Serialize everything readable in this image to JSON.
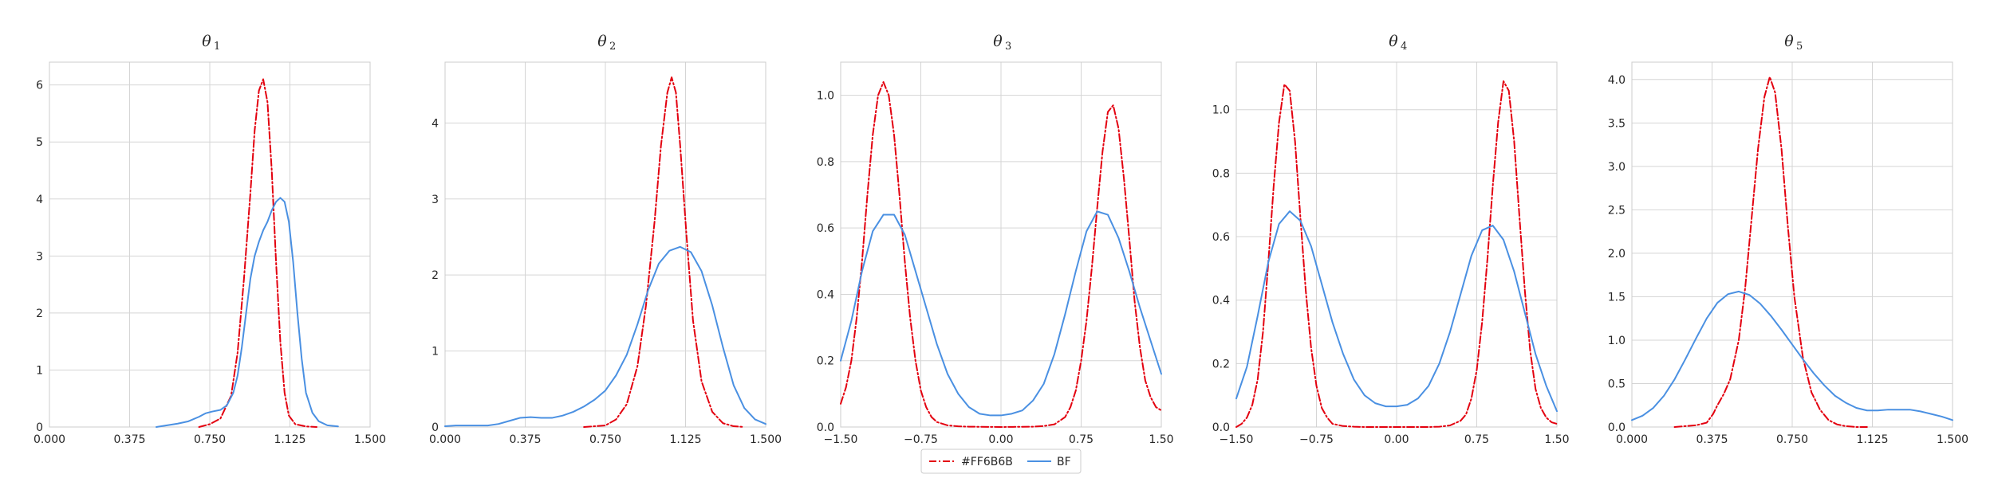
{
  "chart_data": [
    {
      "type": "line",
      "title": "θ",
      "title_sub": "1",
      "xlim": [
        0,
        1.5
      ],
      "ylim": [
        0,
        6.4
      ],
      "xticks": [
        0,
        0.375,
        0.75,
        1.125,
        1.5
      ],
      "xtick_labels": [
        "0.000",
        "0.375",
        "0.750",
        "1.125",
        "1.500"
      ],
      "yticks": [
        0,
        1,
        2,
        3,
        4,
        5,
        6
      ],
      "ytick_labels": [
        "0",
        "1",
        "2",
        "3",
        "4",
        "5",
        "6"
      ],
      "grid": true,
      "series": [
        {
          "name": "#FF6B6B",
          "color": "#e3000f",
          "style": "dashdot",
          "x": [
            0.7,
            0.75,
            0.8,
            0.85,
            0.88,
            0.91,
            0.94,
            0.96,
            0.98,
            1.0,
            1.02,
            1.04,
            1.06,
            1.08,
            1.1,
            1.12,
            1.15,
            1.2,
            1.25
          ],
          "y": [
            0.0,
            0.05,
            0.15,
            0.55,
            1.3,
            2.6,
            4.1,
            5.2,
            5.9,
            6.1,
            5.7,
            4.5,
            2.9,
            1.5,
            0.6,
            0.2,
            0.05,
            0.01,
            0.0
          ]
        },
        {
          "name": "BF",
          "color": "#4a90e2",
          "style": "solid",
          "x": [
            0.5,
            0.55,
            0.6,
            0.65,
            0.7,
            0.73,
            0.76,
            0.8,
            0.83,
            0.86,
            0.88,
            0.9,
            0.92,
            0.94,
            0.96,
            0.98,
            1.0,
            1.02,
            1.04,
            1.06,
            1.08,
            1.1,
            1.12,
            1.14,
            1.16,
            1.18,
            1.2,
            1.23,
            1.26,
            1.3,
            1.35
          ],
          "y": [
            0.0,
            0.03,
            0.06,
            0.1,
            0.18,
            0.24,
            0.27,
            0.3,
            0.38,
            0.6,
            0.9,
            1.4,
            2.0,
            2.6,
            3.0,
            3.25,
            3.45,
            3.6,
            3.8,
            3.95,
            4.02,
            3.95,
            3.6,
            2.9,
            2.0,
            1.2,
            0.6,
            0.25,
            0.1,
            0.03,
            0.01
          ]
        }
      ]
    },
    {
      "type": "line",
      "title": "θ",
      "title_sub": "2",
      "xlim": [
        0,
        1.5
      ],
      "ylim": [
        0,
        4.8
      ],
      "xticks": [
        0,
        0.375,
        0.75,
        1.125,
        1.5
      ],
      "xtick_labels": [
        "0.000",
        "0.375",
        "0.750",
        "1.125",
        "1.500"
      ],
      "yticks": [
        0,
        1,
        2,
        3,
        4
      ],
      "ytick_labels": [
        "0",
        "1",
        "2",
        "3",
        "4"
      ],
      "grid": true,
      "series": [
        {
          "name": "#FF6B6B",
          "color": "#e3000f",
          "style": "dashdot",
          "x": [
            0.65,
            0.75,
            0.8,
            0.85,
            0.9,
            0.94,
            0.98,
            1.01,
            1.04,
            1.06,
            1.08,
            1.1,
            1.13,
            1.16,
            1.2,
            1.25,
            1.3,
            1.35,
            1.4
          ],
          "y": [
            0.0,
            0.02,
            0.1,
            0.3,
            0.8,
            1.6,
            2.7,
            3.7,
            4.4,
            4.6,
            4.4,
            3.7,
            2.5,
            1.4,
            0.6,
            0.2,
            0.05,
            0.01,
            0.0
          ]
        },
        {
          "name": "BF",
          "color": "#4a90e2",
          "style": "solid",
          "x": [
            0.0,
            0.05,
            0.1,
            0.15,
            0.2,
            0.25,
            0.3,
            0.35,
            0.4,
            0.45,
            0.5,
            0.55,
            0.6,
            0.65,
            0.7,
            0.75,
            0.8,
            0.85,
            0.9,
            0.95,
            1.0,
            1.05,
            1.1,
            1.15,
            1.2,
            1.25,
            1.3,
            1.35,
            1.4,
            1.45,
            1.5
          ],
          "y": [
            0.01,
            0.02,
            0.02,
            0.02,
            0.02,
            0.04,
            0.08,
            0.12,
            0.13,
            0.12,
            0.12,
            0.15,
            0.2,
            0.27,
            0.36,
            0.48,
            0.68,
            0.95,
            1.35,
            1.8,
            2.15,
            2.32,
            2.37,
            2.3,
            2.05,
            1.6,
            1.05,
            0.55,
            0.25,
            0.1,
            0.04
          ]
        }
      ]
    },
    {
      "type": "line",
      "title": "θ",
      "title_sub": "3",
      "xlim": [
        -1.5,
        1.5
      ],
      "ylim": [
        0,
        1.1
      ],
      "xticks": [
        -1.5,
        -0.75,
        0,
        0.75,
        1.5
      ],
      "xtick_labels": [
        "−1.50",
        "−0.75",
        "0.00",
        "0.75",
        "1.50"
      ],
      "yticks": [
        0,
        0.2,
        0.4,
        0.6,
        0.8,
        1.0
      ],
      "ytick_labels": [
        "0.0",
        "0.2",
        "0.4",
        "0.6",
        "0.8",
        "1.0"
      ],
      "grid": true,
      "series": [
        {
          "name": "#FF6B6B",
          "color": "#e3000f",
          "style": "dashdot",
          "x": [
            -1.5,
            -1.45,
            -1.4,
            -1.35,
            -1.3,
            -1.25,
            -1.2,
            -1.15,
            -1.1,
            -1.05,
            -1.0,
            -0.95,
            -0.9,
            -0.85,
            -0.8,
            -0.75,
            -0.7,
            -0.65,
            -0.6,
            -0.5,
            -0.4,
            -0.3,
            0.0,
            0.3,
            0.4,
            0.5,
            0.6,
            0.65,
            0.7,
            0.75,
            0.8,
            0.85,
            0.9,
            0.95,
            1.0,
            1.05,
            1.1,
            1.15,
            1.2,
            1.25,
            1.3,
            1.35,
            1.4,
            1.45,
            1.5
          ],
          "y": [
            0.07,
            0.12,
            0.2,
            0.33,
            0.5,
            0.7,
            0.88,
            1.0,
            1.04,
            1.0,
            0.88,
            0.7,
            0.5,
            0.33,
            0.2,
            0.11,
            0.06,
            0.03,
            0.015,
            0.005,
            0.002,
            0.001,
            0.0,
            0.001,
            0.003,
            0.008,
            0.03,
            0.06,
            0.11,
            0.2,
            0.32,
            0.48,
            0.66,
            0.83,
            0.95,
            0.97,
            0.9,
            0.75,
            0.57,
            0.38,
            0.24,
            0.14,
            0.09,
            0.06,
            0.05
          ]
        },
        {
          "name": "BF",
          "color": "#4a90e2",
          "style": "solid",
          "x": [
            -1.5,
            -1.4,
            -1.3,
            -1.2,
            -1.1,
            -1.0,
            -0.9,
            -0.8,
            -0.7,
            -0.6,
            -0.5,
            -0.4,
            -0.3,
            -0.2,
            -0.1,
            0.0,
            0.1,
            0.2,
            0.3,
            0.4,
            0.5,
            0.6,
            0.7,
            0.8,
            0.9,
            1.0,
            1.1,
            1.2,
            1.3,
            1.4,
            1.5
          ],
          "y": [
            0.2,
            0.32,
            0.47,
            0.59,
            0.64,
            0.64,
            0.58,
            0.47,
            0.36,
            0.25,
            0.16,
            0.1,
            0.06,
            0.04,
            0.035,
            0.035,
            0.04,
            0.05,
            0.08,
            0.13,
            0.22,
            0.34,
            0.47,
            0.59,
            0.65,
            0.64,
            0.57,
            0.47,
            0.36,
            0.26,
            0.16
          ]
        }
      ]
    },
    {
      "type": "line",
      "title": "θ",
      "title_sub": "4",
      "xlim": [
        -1.5,
        1.5
      ],
      "ylim": [
        0,
        1.15
      ],
      "xticks": [
        -1.5,
        -0.75,
        0,
        0.75,
        1.5
      ],
      "xtick_labels": [
        "−1.50",
        "−0.75",
        "0.00",
        "0.75",
        "1.50"
      ],
      "yticks": [
        0,
        0.2,
        0.4,
        0.6,
        0.8,
        1.0
      ],
      "ytick_labels": [
        "0.0",
        "0.2",
        "0.4",
        "0.6",
        "0.8",
        "1.0"
      ],
      "grid": true,
      "series": [
        {
          "name": "#FF6B6B",
          "color": "#e3000f",
          "style": "dashdot",
          "x": [
            -1.5,
            -1.45,
            -1.4,
            -1.35,
            -1.3,
            -1.25,
            -1.2,
            -1.15,
            -1.1,
            -1.05,
            -1.0,
            -0.95,
            -0.9,
            -0.85,
            -0.8,
            -0.75,
            -0.7,
            -0.65,
            -0.6,
            -0.5,
            -0.4,
            -0.3,
            0.0,
            0.3,
            0.4,
            0.5,
            0.6,
            0.65,
            0.7,
            0.75,
            0.8,
            0.85,
            0.9,
            0.95,
            1.0,
            1.05,
            1.1,
            1.15,
            1.2,
            1.25,
            1.3,
            1.35,
            1.4,
            1.45,
            1.5
          ],
          "y": [
            0.0,
            0.01,
            0.03,
            0.07,
            0.15,
            0.3,
            0.52,
            0.76,
            0.96,
            1.08,
            1.06,
            0.9,
            0.66,
            0.43,
            0.25,
            0.13,
            0.06,
            0.03,
            0.01,
            0.003,
            0.001,
            0.0,
            0.0,
            0.0,
            0.001,
            0.005,
            0.02,
            0.04,
            0.09,
            0.18,
            0.33,
            0.53,
            0.76,
            0.96,
            1.09,
            1.06,
            0.9,
            0.66,
            0.43,
            0.24,
            0.12,
            0.06,
            0.03,
            0.015,
            0.01
          ]
        },
        {
          "name": "BF",
          "color": "#4a90e2",
          "style": "solid",
          "x": [
            -1.5,
            -1.4,
            -1.3,
            -1.2,
            -1.1,
            -1.0,
            -0.9,
            -0.8,
            -0.7,
            -0.6,
            -0.5,
            -0.4,
            -0.3,
            -0.2,
            -0.1,
            0.0,
            0.1,
            0.2,
            0.3,
            0.4,
            0.5,
            0.6,
            0.7,
            0.8,
            0.9,
            1.0,
            1.1,
            1.2,
            1.3,
            1.4,
            1.5
          ],
          "y": [
            0.09,
            0.19,
            0.35,
            0.52,
            0.64,
            0.68,
            0.65,
            0.57,
            0.45,
            0.33,
            0.23,
            0.15,
            0.1,
            0.075,
            0.065,
            0.065,
            0.07,
            0.09,
            0.13,
            0.2,
            0.3,
            0.42,
            0.54,
            0.62,
            0.635,
            0.59,
            0.49,
            0.36,
            0.23,
            0.13,
            0.05
          ]
        }
      ]
    },
    {
      "type": "line",
      "title": "θ",
      "title_sub": "5",
      "xlim": [
        0,
        1.5
      ],
      "ylim": [
        0,
        4.2
      ],
      "xticks": [
        0,
        0.375,
        0.75,
        1.125,
        1.5
      ],
      "xtick_labels": [
        "0.000",
        "0.375",
        "0.750",
        "1.125",
        "1.500"
      ],
      "yticks": [
        0,
        0.5,
        1.0,
        1.5,
        2.0,
        2.5,
        3.0,
        3.5,
        4.0
      ],
      "ytick_labels": [
        "0.0",
        "0.5",
        "1.0",
        "1.5",
        "2.0",
        "2.5",
        "3.0",
        "3.5",
        "4.0"
      ],
      "grid": true,
      "series": [
        {
          "name": "#FF6B6B",
          "color": "#e3000f",
          "style": "dashdot",
          "x": [
            0.2,
            0.3,
            0.35,
            0.38,
            0.4,
            0.43,
            0.46,
            0.5,
            0.53,
            0.56,
            0.59,
            0.62,
            0.645,
            0.67,
            0.7,
            0.73,
            0.76,
            0.8,
            0.84,
            0.88,
            0.92,
            0.96,
            1.0,
            1.05,
            1.1
          ],
          "y": [
            0.0,
            0.02,
            0.05,
            0.15,
            0.25,
            0.38,
            0.55,
            1.0,
            1.6,
            2.4,
            3.2,
            3.8,
            4.03,
            3.85,
            3.2,
            2.3,
            1.5,
            0.8,
            0.4,
            0.2,
            0.08,
            0.03,
            0.01,
            0.0,
            0.0
          ]
        },
        {
          "name": "BF",
          "color": "#4a90e2",
          "style": "solid",
          "x": [
            0.0,
            0.05,
            0.1,
            0.15,
            0.2,
            0.25,
            0.3,
            0.35,
            0.4,
            0.45,
            0.5,
            0.55,
            0.6,
            0.65,
            0.7,
            0.75,
            0.8,
            0.85,
            0.9,
            0.95,
            1.0,
            1.05,
            1.1,
            1.15,
            1.2,
            1.25,
            1.3,
            1.35,
            1.4,
            1.45,
            1.5
          ],
          "y": [
            0.08,
            0.13,
            0.22,
            0.36,
            0.55,
            0.78,
            1.02,
            1.25,
            1.43,
            1.53,
            1.56,
            1.52,
            1.42,
            1.28,
            1.12,
            0.95,
            0.78,
            0.62,
            0.48,
            0.36,
            0.28,
            0.22,
            0.19,
            0.19,
            0.2,
            0.2,
            0.2,
            0.18,
            0.15,
            0.12,
            0.08
          ]
        }
      ]
    }
  ],
  "legend": {
    "position": "bottom-center",
    "entries": [
      {
        "label": "#FF6B6B",
        "color": "#e3000f",
        "style": "dashdot"
      },
      {
        "label": "BF",
        "color": "#4a90e2",
        "style": "solid"
      }
    ]
  }
}
